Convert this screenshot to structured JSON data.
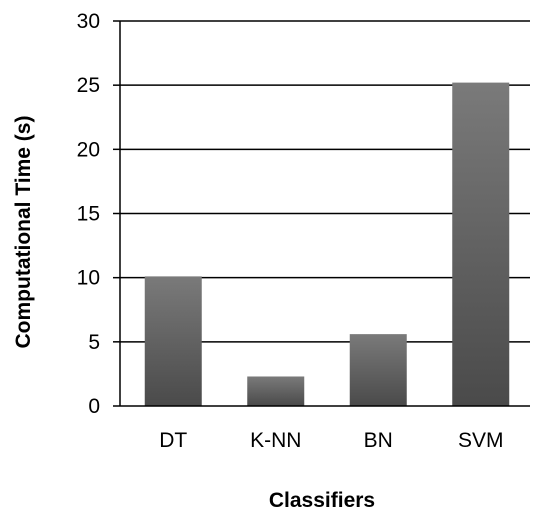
{
  "chart_data": {
    "type": "bar",
    "categories": [
      "DT",
      "K-NN",
      "BN",
      "SVM"
    ],
    "values": [
      10.1,
      2.3,
      5.6,
      25.2
    ],
    "xlabel": "Classifiers",
    "ylabel": "Computational Time (s)",
    "ylim": [
      0,
      30
    ],
    "yticks": [
      0,
      5,
      10,
      15,
      20,
      25,
      30
    ],
    "grid": true,
    "legend": "none",
    "colors": {
      "bar_top": "#7a7a7a",
      "bar_bottom": "#4a4a4a",
      "grid": "#000000",
      "axis": "#000000"
    }
  }
}
